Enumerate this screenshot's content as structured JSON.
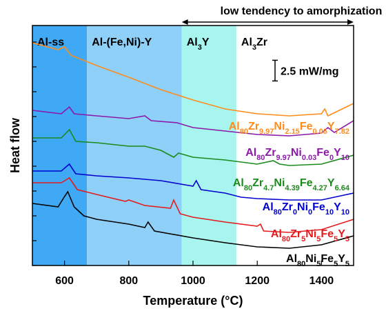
{
  "chart_data": {
    "type": "line",
    "xlabel": "Temperature (°C)",
    "ylabel": "Heat flow",
    "xlim": [
      500,
      1500
    ],
    "xticks": [
      600,
      800,
      1000,
      1200,
      1400
    ],
    "ylim": [
      0,
      29
    ],
    "yticks": [
      0,
      3,
      6,
      9,
      12,
      15,
      18,
      21,
      24,
      27
    ],
    "regions": [
      {
        "label": "Al-ss",
        "from": 500,
        "to": 670,
        "color": "#3fa9f5"
      },
      {
        "label": "Al-(Fe,Ni)-Y",
        "from": 670,
        "to": 965,
        "color": "#8fd0f8"
      },
      {
        "label": "Al3Y",
        "from": 965,
        "to": 1135,
        "color": "#a8f4ef"
      },
      {
        "label": "Al3Zr",
        "from": 1135,
        "to": 1500,
        "color": "#ffffff"
      }
    ],
    "arrow": {
      "text": "low tendency to amorphization",
      "from": 965,
      "to": 1500
    },
    "scale_bar": {
      "label": "2.5 mW/mg",
      "value": 2.5
    },
    "series": [
      {
        "name": "Al80Zr9.97Ni2.15Fe0.06Y7.82",
        "color": "#ff8c1a",
        "x": [
          500,
          580,
          600,
          620,
          700,
          800,
          900,
          1000,
          1100,
          1200,
          1300,
          1400,
          1410,
          1420,
          1500
        ],
        "values": [
          26.92,
          26.08,
          26.42,
          25.42,
          24.17,
          22.75,
          21.25,
          20,
          18.92,
          18.33,
          18.08,
          18.33,
          18.92,
          18.08,
          19.58
        ]
      },
      {
        "name": "Al80Zr9.97Ni0.03Fe0Y10",
        "color": "#8b18a8",
        "x": [
          500,
          590,
          615,
          630,
          700,
          800,
          850,
          870,
          950,
          1000,
          1100,
          1200,
          1300,
          1400,
          1420,
          1440,
          1500
        ],
        "values": [
          18.75,
          18.33,
          19.17,
          18.33,
          18.08,
          17.75,
          18.08,
          17.5,
          17.25,
          16.67,
          16.25,
          15.83,
          15.67,
          16,
          16.67,
          16.08,
          17.5
        ]
      },
      {
        "name": "Al80Zr4.7Ni4.39Fe4.27Y6.64",
        "color": "#1a8a1a",
        "x": [
          500,
          590,
          615,
          635,
          700,
          800,
          850,
          900,
          940,
          955,
          1000,
          1100,
          1200,
          1250,
          1270,
          1300,
          1400,
          1500
        ],
        "values": [
          15.42,
          15.42,
          16.42,
          15,
          14.83,
          14.42,
          14.42,
          13.92,
          13.08,
          13.58,
          13.08,
          12.75,
          12.25,
          12.67,
          12.25,
          12.08,
          12.25,
          13.33
        ]
      },
      {
        "name": "Al80Zr0Ni0Fe10Y10",
        "color": "#0000d0",
        "x": [
          500,
          590,
          615,
          635,
          700,
          800,
          900,
          1000,
          1010,
          1025,
          1100,
          1150,
          1200,
          1300,
          1400,
          1500
        ],
        "values": [
          11.42,
          11.42,
          12.25,
          11.08,
          10.83,
          10.58,
          10.25,
          9.58,
          10.25,
          9.17,
          8.75,
          8.25,
          8.08,
          7.92,
          7.92,
          8.75
        ]
      },
      {
        "name": "Al80Zr5Ni5Fe5Y5",
        "color": "#e41a1c",
        "x": [
          500,
          590,
          615,
          640,
          700,
          790,
          800,
          850,
          930,
          940,
          960,
          1000,
          1100,
          1200,
          1210,
          1220,
          1300,
          1400,
          1500
        ],
        "values": [
          10,
          10,
          10.58,
          9.17,
          8.58,
          7.75,
          7.92,
          7.25,
          6.92,
          7.92,
          6.25,
          5.83,
          5.25,
          4.75,
          5,
          4.17,
          4,
          4.33,
          5.58
        ]
      },
      {
        "name": "Al80Ni5Fe5Y5",
        "color": "#000000",
        "x": [
          500,
          580,
          600,
          610,
          630,
          660,
          700,
          800,
          850,
          860,
          880,
          1000,
          1100,
          1200,
          1300,
          1400,
          1500
        ],
        "values": [
          7.5,
          7.08,
          8.33,
          8.92,
          7.08,
          6,
          5.58,
          5,
          4.58,
          5.25,
          4.17,
          3.33,
          2.75,
          2.25,
          2.08,
          2.5,
          3.58
        ]
      }
    ]
  }
}
